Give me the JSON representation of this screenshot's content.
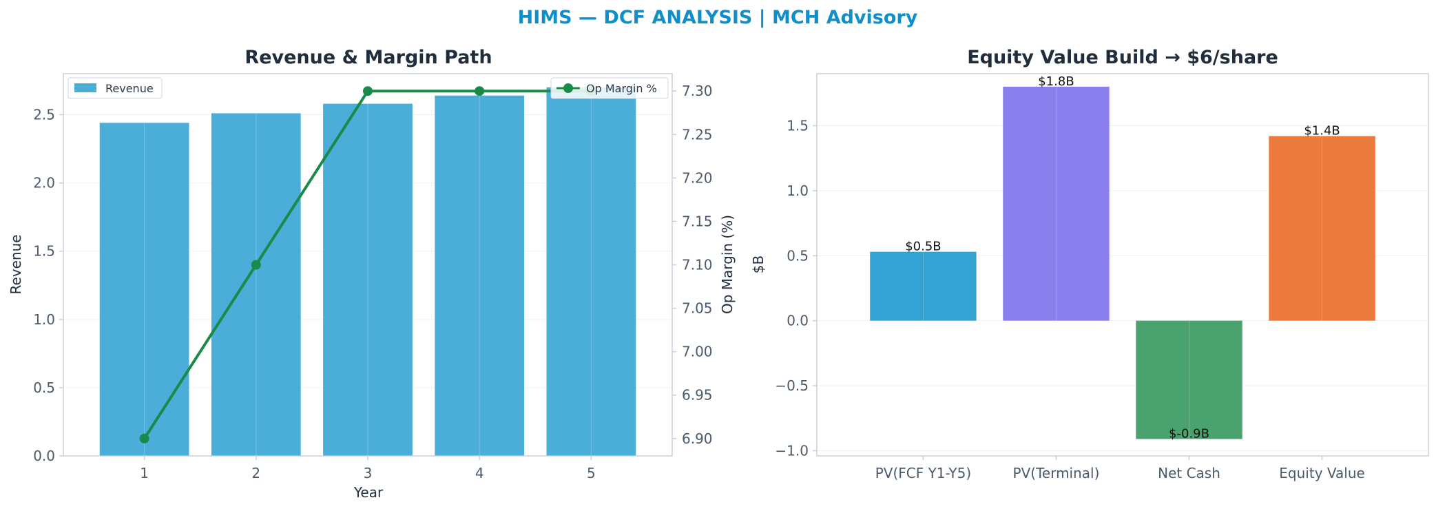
{
  "suptitle": "HIMS — DCF ANALYSIS | MCH Advisory",
  "colors": {
    "title": "#0e8fc9",
    "revenue_bar": "#4aaed9",
    "op_margin_line": "#1a8a4a",
    "pv_fcf": "#35a2d4",
    "pv_terminal": "#8a7fec",
    "net_cash": "#4aa36f",
    "equity_value": "#ec7a3d",
    "spine": "#c7d0da",
    "grid": "#eef1f4"
  },
  "chart_data": [
    {
      "type": "bar",
      "title": "Revenue & Margin Path",
      "xlabel": "Year",
      "ylabel": "Revenue",
      "ylabel_right": "Op Margin (%)",
      "categories": [
        "1",
        "2",
        "3",
        "4",
        "5"
      ],
      "yticks": [
        "0.0",
        "0.5",
        "1.0",
        "1.5",
        "2.0",
        "2.5"
      ],
      "yticks_right": [
        "6.90",
        "6.95",
        "7.00",
        "7.05",
        "7.10",
        "7.15",
        "7.20",
        "7.25",
        "7.30"
      ],
      "ylim": [
        0,
        2.8
      ],
      "ylim_right": [
        6.88,
        7.32
      ],
      "grid": true,
      "series": [
        {
          "name": "Revenue",
          "type": "bar",
          "axis": "left",
          "values": [
            2.44,
            2.51,
            2.58,
            2.64,
            2.7
          ]
        },
        {
          "name": "Op Margin %",
          "type": "line",
          "axis": "right",
          "values": [
            6.9,
            7.1,
            7.3,
            7.3,
            7.3
          ]
        }
      ],
      "legend": {
        "bars": "upper-left",
        "line": "upper-right"
      }
    },
    {
      "type": "bar",
      "title": "Equity Value Build → $6/share",
      "xlabel": "",
      "ylabel": "$B",
      "categories": [
        "PV(FCF Y1-Y5)",
        "PV(Terminal)",
        "Net Cash",
        "Equity Value"
      ],
      "values": [
        0.53,
        1.8,
        -0.91,
        1.42
      ],
      "data_labels": [
        "$0.5B",
        "$1.8B",
        "$-0.9B",
        "$1.4B"
      ],
      "yticks": [
        "−1.0",
        "−0.5",
        "0.0",
        "0.5",
        "1.0",
        "1.5"
      ],
      "ylim": [
        -1.04,
        1.9
      ],
      "grid": true
    }
  ]
}
